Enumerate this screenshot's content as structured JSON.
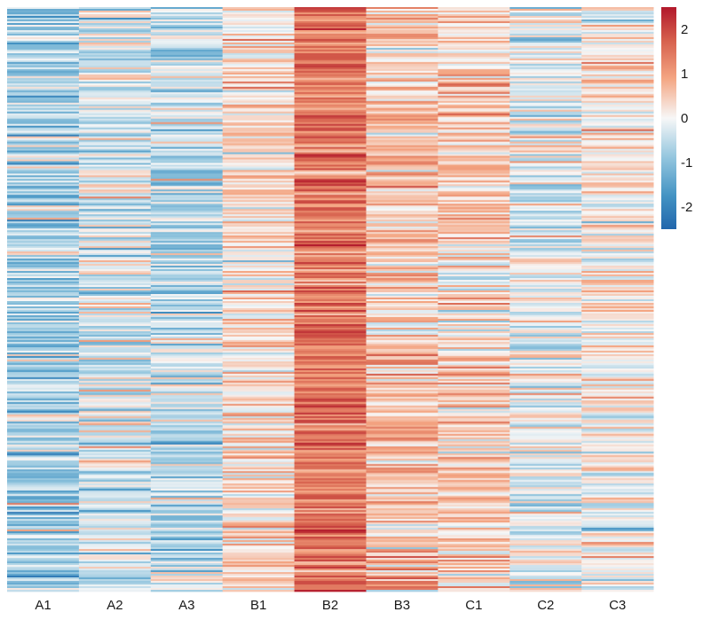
{
  "chart_data": {
    "type": "heatmap",
    "title": "",
    "xlabel": "",
    "ylabel": "",
    "columns": [
      "A1",
      "A2",
      "A3",
      "B1",
      "B2",
      "B3",
      "C1",
      "C2",
      "C3"
    ],
    "row_count": 330,
    "column_mean_z": [
      -0.6,
      -0.2,
      -0.4,
      0.25,
      1.3,
      0.45,
      0.35,
      -0.1,
      0.1
    ],
    "column_sd_z": [
      0.55,
      0.5,
      0.5,
      0.4,
      0.45,
      0.45,
      0.45,
      0.45,
      0.4
    ],
    "color_scale": {
      "range": [
        -2.5,
        2.5
      ],
      "ticks": [
        2,
        1,
        0,
        -1,
        -2
      ],
      "low_color": "#2166ac",
      "mid_color": "#f7f7f7",
      "high_color": "#b2182b"
    },
    "legend_position": "right"
  }
}
